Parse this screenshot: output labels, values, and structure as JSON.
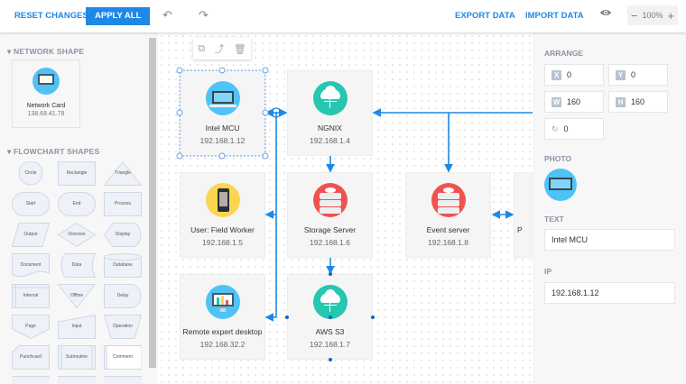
{
  "toolbar": {
    "reset": "RESET CHANGES",
    "apply": "APPLY ALL",
    "export": "EXPORT DATA",
    "import": "IMPORT DATA",
    "zoom": "100%",
    "accent": "#1e88e5"
  },
  "sidebar": {
    "network_title": "NETWORK SHAPE",
    "network_card": {
      "name": "Network Card",
      "ip": "138.68.41.78"
    },
    "flowchart_title": "FLOWCHART SHAPES",
    "shapes": [
      "Circle",
      "Rectangle",
      "Triangle",
      "Start",
      "End",
      "Process",
      "Output",
      "Decision",
      "Display",
      "Document",
      "Data",
      "Database",
      "Internal",
      "Offline",
      "Delay",
      "Page",
      "Input",
      "Operation",
      "Punchcard",
      "Subroutine",
      "Comment"
    ]
  },
  "nodes": [
    {
      "name": "Intel MCU",
      "ip": "192.168.1.12",
      "icon": "laptop-icon",
      "color": "#4fc3f7"
    },
    {
      "name": "NGNIX",
      "ip": "192.168.1.4",
      "icon": "cloud-icon",
      "color": "#26c6b0"
    },
    {
      "name": "User: Field Worker",
      "ip": "192.168.1.5",
      "icon": "phone-icon",
      "color": "#fdd54f"
    },
    {
      "name": "Storage Server",
      "ip": "192.168.1.6",
      "icon": "server-icon",
      "color": "#ef5350"
    },
    {
      "name": "Event server",
      "ip": "192.168.1.8",
      "icon": "server-icon",
      "color": "#ef5350"
    },
    {
      "name": "P",
      "ip": "",
      "icon": "",
      "color": ""
    },
    {
      "name": "Remote expert desktop",
      "ip": "192.168.32.2",
      "icon": "monitor-icon",
      "color": "#4fc3f7"
    },
    {
      "name": "AWS S3",
      "ip": "192.168.1.7",
      "icon": "cloud-icon",
      "color": "#26c6b0"
    }
  ],
  "panel": {
    "arrange": "ARRANGE",
    "x_label": "X",
    "x": "0",
    "y_label": "Y",
    "y": "0",
    "w_label": "W",
    "w": "160",
    "h_label": "H",
    "h": "160",
    "rotation": "0",
    "photo": "PHOTO",
    "text_label": "TEXT",
    "text": "Intel MCU",
    "ip_label": "IP",
    "ip": "192.168.1.12"
  }
}
